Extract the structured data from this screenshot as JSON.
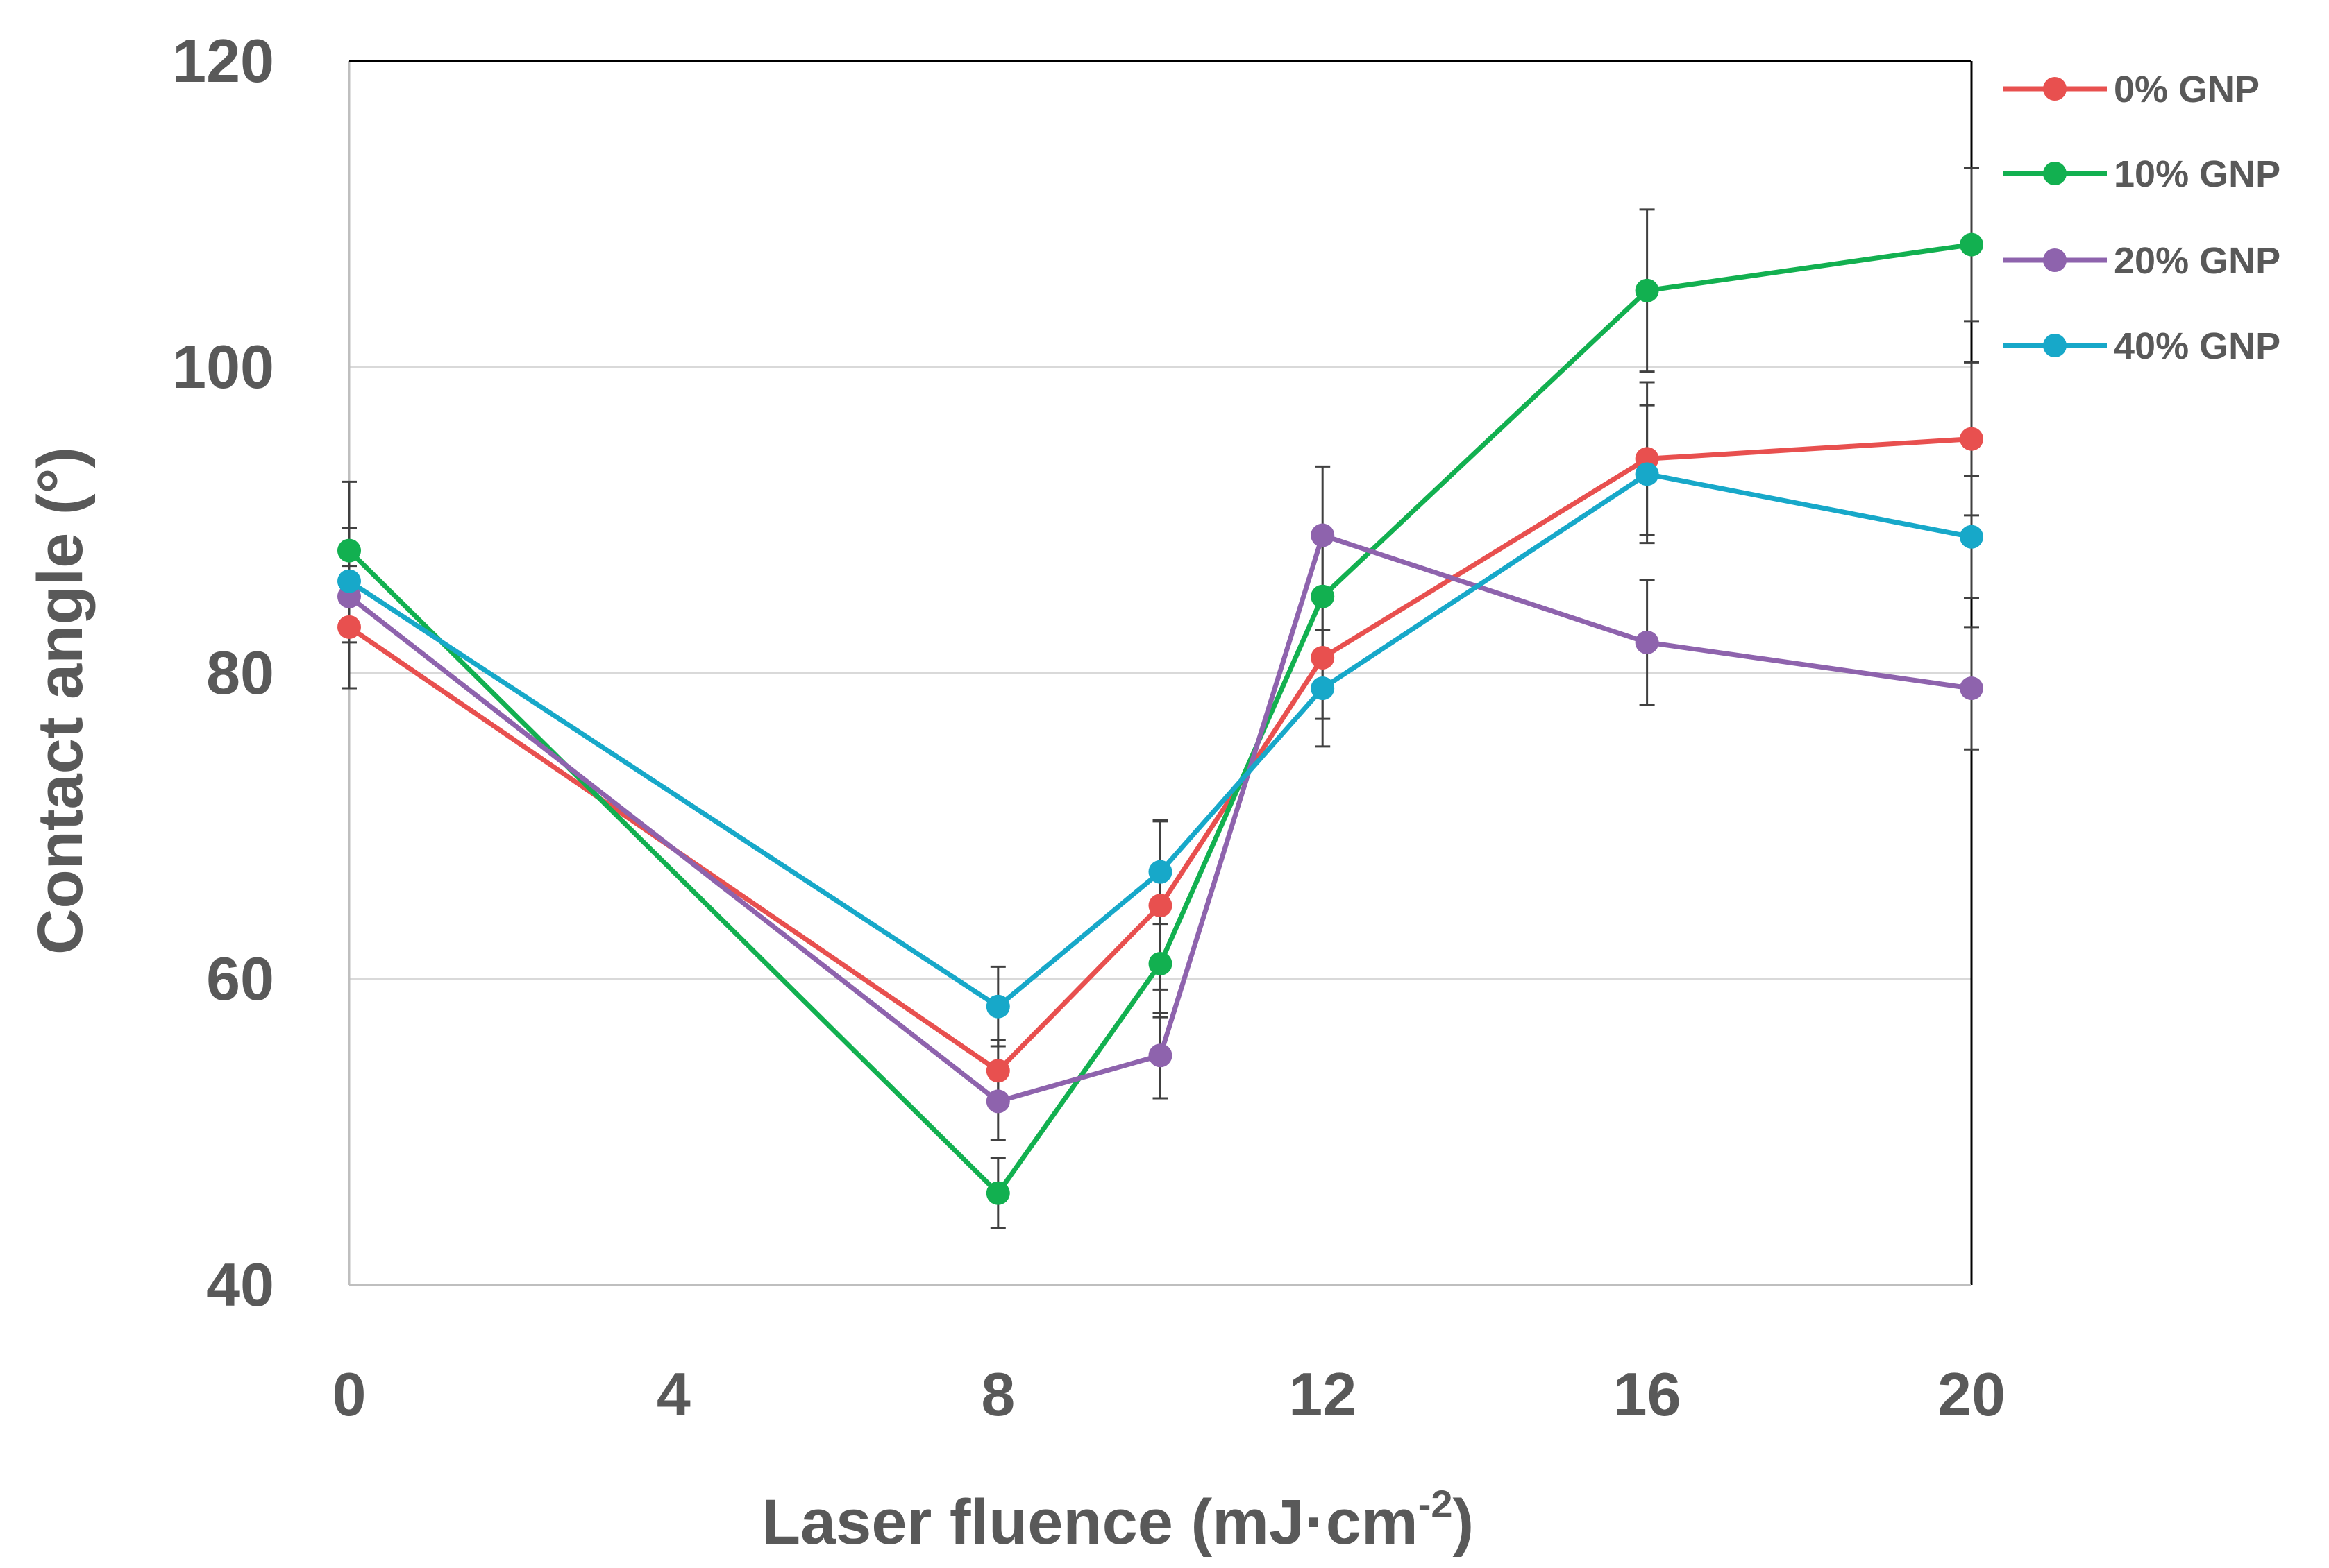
{
  "chart_data": {
    "type": "line",
    "title": "",
    "xlabel": "Laser fluence (mJ·cm",
    "xlabel_sup": "-2",
    "xlabel_close": ")",
    "ylabel": "Contact angle (°)",
    "x": [
      0,
      8,
      10,
      12,
      16,
      20
    ],
    "xlim": [
      0,
      20
    ],
    "ylim": [
      40,
      120
    ],
    "x_ticks": [
      "0",
      "4",
      "8",
      "12",
      "16",
      "20"
    ],
    "x_tick_values": [
      0,
      4,
      8,
      12,
      16,
      20
    ],
    "y_ticks": [
      "40",
      "60",
      "80",
      "100",
      "120"
    ],
    "y_tick_values": [
      40,
      60,
      80,
      100,
      120
    ],
    "grid": true,
    "legend_position": "top-right",
    "series": [
      {
        "name": "0% GNP",
        "color": "#e8504f",
        "values": [
          83,
          54,
          64.8,
          81,
          94,
          95.3
        ],
        "errors": [
          4,
          2,
          5.5,
          4,
          5,
          5
        ]
      },
      {
        "name": "10% GNP",
        "color": "#12b050",
        "values": [
          88,
          46,
          61,
          85,
          105,
          108
        ],
        "errors": [
          4.5,
          2.3,
          3.5,
          4,
          5.3,
          5
        ]
      },
      {
        "name": "20% GNP",
        "color": "#8e63ad",
        "values": [
          85,
          52,
          55,
          89,
          82,
          79
        ],
        "errors": [
          3,
          2.5,
          2.8,
          4.5,
          4.1,
          4
        ]
      },
      {
        "name": "40% GNP",
        "color": "#17a8c9",
        "values": [
          86,
          58.2,
          67,
          79,
          93,
          88.9
        ],
        "errors": [
          3.5,
          2.6,
          3.4,
          3.8,
          4.5,
          4
        ]
      }
    ]
  }
}
